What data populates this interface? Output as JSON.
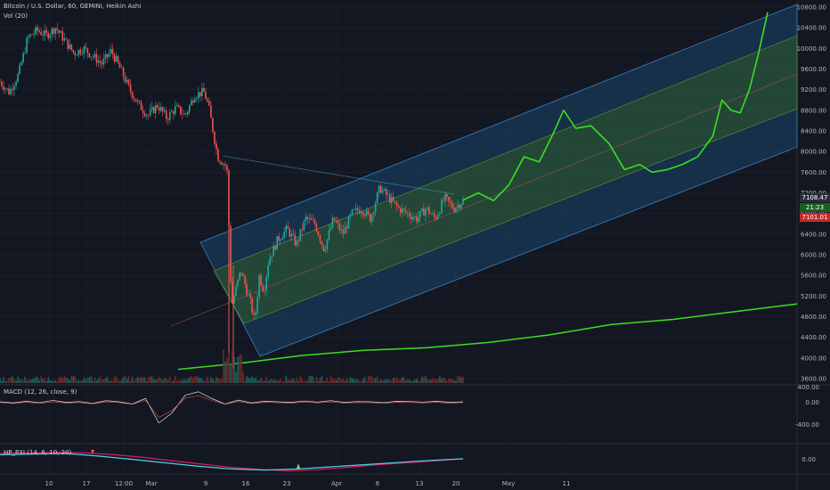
{
  "header": {
    "title": "Bitcoin / U.S. Dollar, 60, GEMINI, Heikin Ashi",
    "vol": "Vol (20)"
  },
  "macd": {
    "label": "MACD (12, 26, close, 9)"
  },
  "hp": {
    "label": "HP_PXI (14, 6, 10, 20)"
  },
  "badges": {
    "upper": "7108.47",
    "time": "21:23",
    "lower": "7101.01"
  },
  "colors": {
    "background": "#131722",
    "up": "#26a69a",
    "down": "#ef5350",
    "forecast": "#39e01f",
    "ma": "#39e01f",
    "channel_outer": "#1e5a8c",
    "channel_inner": "#2e5a2a"
  },
  "chart_data": {
    "type": "candlestick",
    "price_axis": {
      "ticks": [
        "10800.00",
        "10400.00",
        "10000.00",
        "9600.00",
        "9200.00",
        "8800.00",
        "8400.00",
        "8000.00",
        "7600.00",
        "7200.00",
        "6800.00",
        "6400.00",
        "6000.00",
        "5600.00",
        "5200.00",
        "4800.00",
        "4400.00",
        "4000.00",
        "3600.00"
      ],
      "range": [
        3550,
        10850
      ]
    },
    "macd_axis": {
      "ticks": [
        "400.00",
        "0.00",
        "-400.00"
      ]
    },
    "hp_axis": {
      "ticks": [
        "0.00"
      ]
    },
    "x_axis": {
      "ticks": [
        "10",
        "17",
        "12:00",
        "Mar",
        "9",
        "16",
        "23",
        "Apr",
        "6",
        "13",
        "20",
        "May",
        "11"
      ]
    },
    "price_path": [
      [
        0,
        9350
      ],
      [
        0.02,
        9150
      ],
      [
        0.04,
        9500
      ],
      [
        0.06,
        10200
      ],
      [
        0.08,
        10350
      ],
      [
        0.1,
        10250
      ],
      [
        0.12,
        10400
      ],
      [
        0.14,
        10150
      ],
      [
        0.16,
        9900
      ],
      [
        0.18,
        10000
      ],
      [
        0.2,
        9850
      ],
      [
        0.22,
        9700
      ],
      [
        0.24,
        9950
      ],
      [
        0.26,
        9600
      ],
      [
        0.28,
        9200
      ],
      [
        0.3,
        8900
      ],
      [
        0.32,
        8700
      ],
      [
        0.34,
        8900
      ],
      [
        0.36,
        8650
      ],
      [
        0.38,
        8850
      ],
      [
        0.4,
        8700
      ],
      [
        0.42,
        9100
      ],
      [
        0.44,
        9150
      ],
      [
        0.45,
        8900
      ],
      [
        0.46,
        8400
      ],
      [
        0.47,
        7900
      ],
      [
        0.48,
        7800
      ],
      [
        0.49,
        7700
      ],
      [
        0.5,
        5000
      ],
      [
        0.52,
        5700
      ],
      [
        0.53,
        5400
      ],
      [
        0.54,
        5100
      ],
      [
        0.55,
        4700
      ],
      [
        0.56,
        5600
      ],
      [
        0.57,
        5300
      ],
      [
        0.58,
        5900
      ],
      [
        0.6,
        6300
      ],
      [
        0.62,
        6500
      ],
      [
        0.64,
        6200
      ],
      [
        0.66,
        6700
      ],
      [
        0.68,
        6600
      ],
      [
        0.7,
        6100
      ],
      [
        0.72,
        6700
      ],
      [
        0.74,
        6400
      ],
      [
        0.76,
        6800
      ],
      [
        0.78,
        6900
      ],
      [
        0.8,
        6700
      ],
      [
        0.82,
        7300
      ],
      [
        0.84,
        7100
      ],
      [
        0.86,
        6900
      ],
      [
        0.88,
        6800
      ],
      [
        0.9,
        6700
      ],
      [
        0.92,
        6900
      ],
      [
        0.94,
        6700
      ],
      [
        0.96,
        7100
      ],
      [
        0.98,
        6900
      ],
      [
        1,
        7050
      ]
    ],
    "forecast_path": [
      [
        0,
        7060
      ],
      [
        0.05,
        7200
      ],
      [
        0.1,
        7050
      ],
      [
        0.15,
        7350
      ],
      [
        0.2,
        7900
      ],
      [
        0.25,
        7800
      ],
      [
        0.3,
        8400
      ],
      [
        0.33,
        8800
      ],
      [
        0.37,
        8450
      ],
      [
        0.42,
        8500
      ],
      [
        0.48,
        8150
      ],
      [
        0.53,
        7650
      ],
      [
        0.58,
        7750
      ],
      [
        0.62,
        7600
      ],
      [
        0.67,
        7650
      ],
      [
        0.72,
        7750
      ],
      [
        0.77,
        7900
      ],
      [
        0.82,
        8300
      ],
      [
        0.85,
        9000
      ],
      [
        0.88,
        8800
      ],
      [
        0.91,
        8750
      ],
      [
        0.94,
        9200
      ],
      [
        0.97,
        9900
      ],
      [
        1,
        10700
      ]
    ],
    "ma_path": [
      [
        0,
        3780
      ],
      [
        0.1,
        3900
      ],
      [
        0.2,
        4050
      ],
      [
        0.3,
        4150
      ],
      [
        0.4,
        4200
      ],
      [
        0.5,
        4300
      ],
      [
        0.6,
        4450
      ],
      [
        0.7,
        4650
      ],
      [
        0.8,
        4750
      ],
      [
        0.9,
        4900
      ],
      [
        1,
        5050
      ]
    ],
    "macd_series": [
      0,
      -20,
      10,
      -15,
      25,
      -10,
      5,
      -30,
      20,
      0,
      -40,
      60,
      -380,
      -200,
      120,
      180,
      60,
      -40,
      30,
      -20,
      10,
      0,
      -10,
      15,
      -5,
      20,
      -10,
      5,
      0,
      -15,
      10,
      5,
      -5,
      10,
      -10,
      0
    ],
    "hp_series_red": [
      0.7,
      0.72,
      0.75,
      0.72,
      0.65,
      0.55,
      0.42,
      0.3,
      0.18,
      0.1,
      0.05,
      0.1,
      0.18,
      0.28,
      0.35,
      0.42,
      0.5
    ],
    "hp_series_teal": [
      0.65,
      0.68,
      0.7,
      0.6,
      0.48,
      0.35,
      0.22,
      0.12,
      0.08,
      0.12,
      0.2,
      0.28,
      0.36,
      0.44,
      0.5
    ]
  }
}
